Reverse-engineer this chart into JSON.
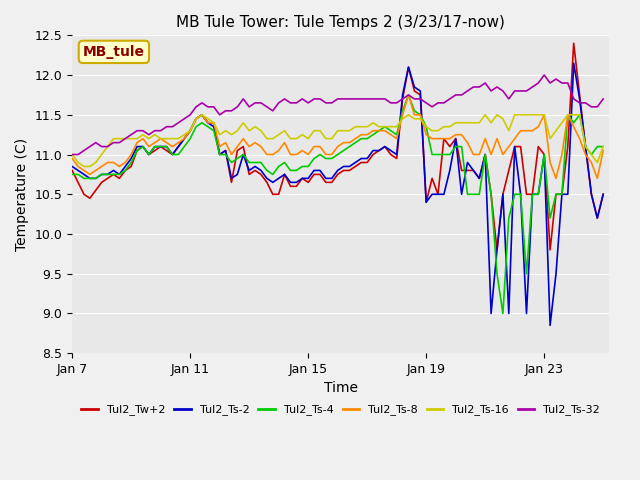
{
  "title": "MB Tule Tower: Tule Temps 2 (3/23/17-now)",
  "xlabel": "Time",
  "ylabel": "Temperature (C)",
  "ylim": [
    8.5,
    12.5
  ],
  "yticks": [
    8.5,
    9.0,
    9.5,
    10.0,
    10.5,
    11.0,
    11.5,
    12.0,
    12.5
  ],
  "bg_color": "#e8e8e8",
  "plot_bg_color": "#e8e8e8",
  "legend_label": "MB_tule",
  "series": {
    "Tul2_Tw+2": {
      "color": "#cc0000",
      "x": [
        7,
        7.2,
        7.4,
        7.6,
        7.8,
        8,
        8.2,
        8.4,
        8.6,
        8.8,
        9,
        9.2,
        9.4,
        9.6,
        9.8,
        10,
        10.2,
        10.4,
        10.6,
        10.8,
        11,
        11.2,
        11.4,
        11.6,
        11.8,
        12,
        12.2,
        12.4,
        12.6,
        12.8,
        13,
        13.2,
        13.4,
        13.6,
        13.8,
        14,
        14.2,
        14.4,
        14.6,
        14.8,
        15,
        15.2,
        15.4,
        15.6,
        15.8,
        16,
        16.2,
        16.4,
        16.6,
        16.8,
        17,
        17.2,
        17.4,
        17.6,
        17.8,
        18,
        18.2,
        18.4,
        18.6,
        18.8,
        19,
        19.2,
        19.4,
        19.6,
        19.8,
        20,
        20.2,
        20.4,
        20.6,
        20.8,
        21,
        21.2,
        21.4,
        21.6,
        21.8,
        22,
        22.2,
        22.4,
        22.6,
        22.8,
        23,
        23.2,
        23.4,
        23.6,
        23.8,
        24,
        24.2,
        24.4,
        24.6,
        24.8,
        25
      ],
      "y": [
        10.8,
        10.65,
        10.5,
        10.45,
        10.55,
        10.65,
        10.7,
        10.75,
        10.7,
        10.8,
        10.85,
        11.05,
        11.1,
        11.0,
        11.05,
        11.1,
        11.05,
        11.0,
        11.1,
        11.2,
        11.3,
        11.45,
        11.5,
        11.4,
        11.4,
        11.0,
        11.05,
        10.65,
        11.05,
        11.1,
        10.75,
        10.8,
        10.75,
        10.65,
        10.5,
        10.5,
        10.75,
        10.6,
        10.6,
        10.7,
        10.65,
        10.75,
        10.75,
        10.65,
        10.65,
        10.75,
        10.8,
        10.8,
        10.85,
        10.9,
        10.9,
        11.0,
        11.05,
        11.1,
        11.0,
        10.95,
        11.7,
        12.1,
        11.8,
        11.75,
        10.4,
        10.7,
        10.5,
        11.2,
        11.1,
        11.2,
        10.8,
        10.8,
        10.8,
        10.7,
        11.0,
        10.5,
        9.8,
        10.5,
        10.8,
        11.1,
        11.1,
        10.5,
        10.5,
        11.1,
        11.0,
        9.8,
        10.5,
        10.5,
        11.1,
        12.4,
        11.75,
        11.1,
        10.5,
        10.2,
        10.5
      ]
    },
    "Tul2_Ts-2": {
      "color": "#0000cc",
      "x": [
        7,
        7.2,
        7.4,
        7.6,
        7.8,
        8,
        8.2,
        8.4,
        8.6,
        8.8,
        9,
        9.2,
        9.4,
        9.6,
        9.8,
        10,
        10.2,
        10.4,
        10.6,
        10.8,
        11,
        11.2,
        11.4,
        11.6,
        11.8,
        12,
        12.2,
        12.4,
        12.6,
        12.8,
        13,
        13.2,
        13.4,
        13.6,
        13.8,
        14,
        14.2,
        14.4,
        14.6,
        14.8,
        15,
        15.2,
        15.4,
        15.6,
        15.8,
        16,
        16.2,
        16.4,
        16.6,
        16.8,
        17,
        17.2,
        17.4,
        17.6,
        17.8,
        18,
        18.2,
        18.4,
        18.6,
        18.8,
        19,
        19.2,
        19.4,
        19.6,
        19.8,
        20,
        20.2,
        20.4,
        20.6,
        20.8,
        21,
        21.2,
        21.4,
        21.6,
        21.8,
        22,
        22.2,
        22.4,
        22.6,
        22.8,
        23,
        23.2,
        23.4,
        23.6,
        23.8,
        24,
        24.2,
        24.4,
        24.6,
        24.8,
        25
      ],
      "y": [
        10.85,
        10.8,
        10.75,
        10.7,
        10.7,
        10.75,
        10.75,
        10.8,
        10.75,
        10.85,
        10.95,
        11.1,
        11.1,
        11.0,
        11.1,
        11.1,
        11.1,
        11.0,
        11.1,
        11.2,
        11.3,
        11.45,
        11.5,
        11.4,
        11.35,
        11.0,
        11.05,
        10.7,
        10.75,
        11.0,
        10.8,
        10.85,
        10.8,
        10.7,
        10.65,
        10.7,
        10.75,
        10.65,
        10.65,
        10.7,
        10.7,
        10.8,
        10.8,
        10.7,
        10.7,
        10.8,
        10.85,
        10.85,
        10.9,
        10.95,
        10.95,
        11.05,
        11.05,
        11.1,
        11.05,
        11.0,
        11.75,
        12.1,
        11.85,
        11.8,
        10.4,
        10.5,
        10.5,
        10.5,
        10.8,
        11.2,
        10.5,
        10.9,
        10.8,
        10.7,
        11.0,
        9.0,
        9.8,
        10.5,
        9.0,
        11.1,
        10.5,
        9.0,
        10.5,
        10.5,
        11.0,
        8.85,
        9.5,
        10.5,
        10.5,
        12.15,
        11.7,
        11.1,
        10.5,
        10.2,
        10.5
      ]
    },
    "Tul2_Ts-4": {
      "color": "#00cc00",
      "x": [
        7,
        7.2,
        7.4,
        7.6,
        7.8,
        8,
        8.2,
        8.4,
        8.6,
        8.8,
        9,
        9.2,
        9.4,
        9.6,
        9.8,
        10,
        10.2,
        10.4,
        10.6,
        10.8,
        11,
        11.2,
        11.4,
        11.6,
        11.8,
        12,
        12.2,
        12.4,
        12.6,
        12.8,
        13,
        13.2,
        13.4,
        13.6,
        13.8,
        14,
        14.2,
        14.4,
        14.6,
        14.8,
        15,
        15.2,
        15.4,
        15.6,
        15.8,
        16,
        16.2,
        16.4,
        16.6,
        16.8,
        17,
        17.2,
        17.4,
        17.6,
        17.8,
        18,
        18.2,
        18.4,
        18.6,
        18.8,
        19,
        19.2,
        19.4,
        19.6,
        19.8,
        20,
        20.2,
        20.4,
        20.6,
        20.8,
        21,
        21.2,
        21.4,
        21.6,
        21.8,
        22,
        22.2,
        22.4,
        22.6,
        22.8,
        23,
        23.2,
        23.4,
        23.6,
        23.8,
        24,
        24.2,
        24.4,
        24.6,
        24.8,
        25
      ],
      "y": [
        10.75,
        10.75,
        10.7,
        10.7,
        10.7,
        10.75,
        10.75,
        10.75,
        10.75,
        10.8,
        10.9,
        11.05,
        11.1,
        11.0,
        11.1,
        11.1,
        11.1,
        11.0,
        11.0,
        11.1,
        11.2,
        11.35,
        11.4,
        11.35,
        11.3,
        11.0,
        11.0,
        10.9,
        10.95,
        11.0,
        10.9,
        10.9,
        10.9,
        10.8,
        10.75,
        10.85,
        10.9,
        10.8,
        10.8,
        10.85,
        10.85,
        10.95,
        11.0,
        10.95,
        10.95,
        11.0,
        11.05,
        11.1,
        11.15,
        11.2,
        11.2,
        11.25,
        11.3,
        11.35,
        11.3,
        11.25,
        11.55,
        11.75,
        11.55,
        11.5,
        11.35,
        11.0,
        11.0,
        11.0,
        11.0,
        11.1,
        11.1,
        10.5,
        10.5,
        10.5,
        11.0,
        10.5,
        9.5,
        9.0,
        10.2,
        10.5,
        10.5,
        9.5,
        10.5,
        10.5,
        11.0,
        10.2,
        10.5,
        10.5,
        11.5,
        11.4,
        11.5,
        11.1,
        11.0,
        11.1,
        11.1
      ]
    },
    "Tul2_Ts-8": {
      "color": "#ff8800",
      "x": [
        7,
        7.2,
        7.4,
        7.6,
        7.8,
        8,
        8.2,
        8.4,
        8.6,
        8.8,
        9,
        9.2,
        9.4,
        9.6,
        9.8,
        10,
        10.2,
        10.4,
        10.6,
        10.8,
        11,
        11.2,
        11.4,
        11.6,
        11.8,
        12,
        12.2,
        12.4,
        12.6,
        12.8,
        13,
        13.2,
        13.4,
        13.6,
        13.8,
        14,
        14.2,
        14.4,
        14.6,
        14.8,
        15,
        15.2,
        15.4,
        15.6,
        15.8,
        16,
        16.2,
        16.4,
        16.6,
        16.8,
        17,
        17.2,
        17.4,
        17.6,
        17.8,
        18,
        18.2,
        18.4,
        18.6,
        18.8,
        19,
        19.2,
        19.4,
        19.6,
        19.8,
        20,
        20.2,
        20.4,
        20.6,
        20.8,
        21,
        21.2,
        21.4,
        21.6,
        21.8,
        22,
        22.2,
        22.4,
        22.6,
        22.8,
        23,
        23.2,
        23.4,
        23.6,
        23.8,
        24,
        24.2,
        24.4,
        24.6,
        24.8,
        25
      ],
      "y": [
        10.95,
        10.85,
        10.8,
        10.75,
        10.8,
        10.85,
        10.9,
        10.9,
        10.85,
        10.9,
        11.0,
        11.15,
        11.2,
        11.1,
        11.15,
        11.2,
        11.15,
        11.1,
        11.15,
        11.2,
        11.3,
        11.45,
        11.5,
        11.4,
        11.4,
        11.1,
        11.15,
        11.0,
        11.1,
        11.2,
        11.1,
        11.15,
        11.1,
        11.0,
        11.0,
        11.05,
        11.15,
        11.0,
        11.0,
        11.05,
        11.0,
        11.1,
        11.1,
        11.0,
        11.0,
        11.1,
        11.15,
        11.15,
        11.2,
        11.25,
        11.25,
        11.3,
        11.3,
        11.3,
        11.25,
        11.2,
        11.5,
        11.75,
        11.5,
        11.5,
        11.25,
        11.2,
        11.2,
        11.2,
        11.2,
        11.25,
        11.25,
        11.15,
        11.0,
        11.0,
        11.2,
        11.0,
        11.2,
        11.0,
        11.1,
        11.2,
        11.3,
        11.3,
        11.3,
        11.35,
        11.5,
        10.9,
        10.7,
        11.0,
        11.5,
        11.35,
        11.2,
        11.0,
        10.9,
        10.7,
        11.05
      ]
    },
    "Tul2_Ts-16": {
      "color": "#cccc00",
      "x": [
        7,
        7.2,
        7.4,
        7.6,
        7.8,
        8,
        8.2,
        8.4,
        8.6,
        8.8,
        9,
        9.2,
        9.4,
        9.6,
        9.8,
        10,
        10.2,
        10.4,
        10.6,
        10.8,
        11,
        11.2,
        11.4,
        11.6,
        11.8,
        12,
        12.2,
        12.4,
        12.6,
        12.8,
        13,
        13.2,
        13.4,
        13.6,
        13.8,
        14,
        14.2,
        14.4,
        14.6,
        14.8,
        15,
        15.2,
        15.4,
        15.6,
        15.8,
        16,
        16.2,
        16.4,
        16.6,
        16.8,
        17,
        17.2,
        17.4,
        17.6,
        17.8,
        18,
        18.2,
        18.4,
        18.6,
        18.8,
        19,
        19.2,
        19.4,
        19.6,
        19.8,
        20,
        20.2,
        20.4,
        20.6,
        20.8,
        21,
        21.2,
        21.4,
        21.6,
        21.8,
        22,
        22.2,
        22.4,
        22.6,
        22.8,
        23,
        23.2,
        23.4,
        23.6,
        23.8,
        24,
        24.2,
        24.4,
        24.6,
        24.8,
        25
      ],
      "y": [
        11.0,
        10.9,
        10.85,
        10.85,
        10.9,
        11.0,
        11.1,
        11.2,
        11.2,
        11.2,
        11.2,
        11.2,
        11.25,
        11.2,
        11.25,
        11.2,
        11.2,
        11.2,
        11.2,
        11.25,
        11.3,
        11.45,
        11.5,
        11.45,
        11.4,
        11.25,
        11.3,
        11.25,
        11.3,
        11.4,
        11.3,
        11.35,
        11.3,
        11.2,
        11.2,
        11.25,
        11.3,
        11.2,
        11.2,
        11.25,
        11.2,
        11.3,
        11.3,
        11.2,
        11.2,
        11.3,
        11.3,
        11.3,
        11.35,
        11.35,
        11.35,
        11.4,
        11.35,
        11.35,
        11.35,
        11.35,
        11.45,
        11.5,
        11.45,
        11.45,
        11.35,
        11.3,
        11.3,
        11.35,
        11.35,
        11.4,
        11.4,
        11.4,
        11.4,
        11.4,
        11.5,
        11.4,
        11.5,
        11.45,
        11.3,
        11.5,
        11.5,
        11.5,
        11.5,
        11.5,
        11.5,
        11.2,
        11.3,
        11.4,
        11.5,
        11.5,
        11.5,
        11.1,
        11.0,
        10.9,
        11.1
      ]
    },
    "Tul2_Ts-32": {
      "color": "#aa00aa",
      "x": [
        7,
        7.2,
        7.4,
        7.6,
        7.8,
        8,
        8.2,
        8.4,
        8.6,
        8.8,
        9,
        9.2,
        9.4,
        9.6,
        9.8,
        10,
        10.2,
        10.4,
        10.6,
        10.8,
        11,
        11.2,
        11.4,
        11.6,
        11.8,
        12,
        12.2,
        12.4,
        12.6,
        12.8,
        13,
        13.2,
        13.4,
        13.6,
        13.8,
        14,
        14.2,
        14.4,
        14.6,
        14.8,
        15,
        15.2,
        15.4,
        15.6,
        15.8,
        16,
        16.2,
        16.4,
        16.6,
        16.8,
        17,
        17.2,
        17.4,
        17.6,
        17.8,
        18,
        18.2,
        18.4,
        18.6,
        18.8,
        19,
        19.2,
        19.4,
        19.6,
        19.8,
        20,
        20.2,
        20.4,
        20.6,
        20.8,
        21,
        21.2,
        21.4,
        21.6,
        21.8,
        22,
        22.2,
        22.4,
        22.6,
        22.8,
        23,
        23.2,
        23.4,
        23.6,
        23.8,
        24,
        24.2,
        24.4,
        24.6,
        24.8,
        25
      ],
      "y": [
        11.0,
        11.0,
        11.05,
        11.1,
        11.15,
        11.1,
        11.1,
        11.15,
        11.15,
        11.2,
        11.25,
        11.3,
        11.3,
        11.25,
        11.3,
        11.3,
        11.35,
        11.35,
        11.4,
        11.45,
        11.5,
        11.6,
        11.65,
        11.6,
        11.6,
        11.5,
        11.55,
        11.55,
        11.6,
        11.7,
        11.6,
        11.65,
        11.65,
        11.6,
        11.55,
        11.65,
        11.7,
        11.65,
        11.65,
        11.7,
        11.65,
        11.7,
        11.7,
        11.65,
        11.65,
        11.7,
        11.7,
        11.7,
        11.7,
        11.7,
        11.7,
        11.7,
        11.7,
        11.7,
        11.65,
        11.65,
        11.7,
        11.75,
        11.7,
        11.7,
        11.65,
        11.6,
        11.65,
        11.65,
        11.7,
        11.75,
        11.75,
        11.8,
        11.85,
        11.85,
        11.9,
        11.8,
        11.85,
        11.8,
        11.7,
        11.8,
        11.8,
        11.8,
        11.85,
        11.9,
        12.0,
        11.9,
        11.95,
        11.9,
        11.9,
        11.7,
        11.65,
        11.65,
        11.6,
        11.6,
        11.7
      ]
    }
  },
  "xtick_positions": [
    7,
    11,
    15,
    19,
    23
  ],
  "xtick_labels": [
    "Jan 7",
    "Jan 11",
    "Jan 15",
    "Jan 19",
    "Jan 23"
  ],
  "legend_order": [
    "Tul2_Tw+2",
    "Tul2_Ts-2",
    "Tul2_Ts-4",
    "Tul2_Ts-8",
    "Tul2_Ts-16",
    "Tul2_Ts-32"
  ]
}
